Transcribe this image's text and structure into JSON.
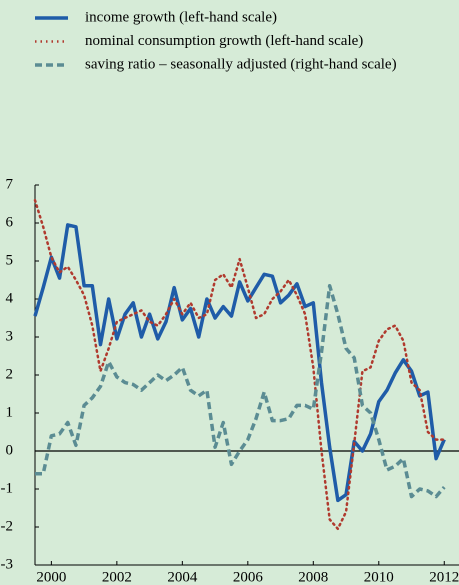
{
  "chart_data": {
    "type": "line",
    "x": [
      1999.5,
      1999.75,
      2000,
      2000.25,
      2000.5,
      2000.75,
      2001,
      2001.25,
      2001.5,
      2001.75,
      2002,
      2002.25,
      2002.5,
      2002.75,
      2003,
      2003.25,
      2003.5,
      2003.75,
      2004,
      2004.25,
      2004.5,
      2004.75,
      2005,
      2005.25,
      2005.5,
      2005.75,
      2006,
      2006.25,
      2006.5,
      2006.75,
      2007,
      2007.25,
      2007.5,
      2007.75,
      2008,
      2008.25,
      2008.5,
      2008.75,
      2009,
      2009.25,
      2009.5,
      2009.75,
      2010,
      2010.25,
      2010.5,
      2010.75,
      2011,
      2011.25,
      2011.5,
      2011.75,
      2012
    ],
    "series": [
      {
        "name": "income growth (left-hand scale)",
        "color": "#1f5ca8",
        "style": "solid",
        "values": [
          3.55,
          4.3,
          5.1,
          4.55,
          5.95,
          5.9,
          4.35,
          4.35,
          2.8,
          4.0,
          2.95,
          3.6,
          3.9,
          3.0,
          3.6,
          2.95,
          3.4,
          4.3,
          3.45,
          3.75,
          3.0,
          4.0,
          3.5,
          3.8,
          3.55,
          4.45,
          3.95,
          4.3,
          4.65,
          4.6,
          3.9,
          4.1,
          4.4,
          3.8,
          3.9,
          1.8,
          0.1,
          -1.3,
          -1.15,
          0.25,
          0.0,
          0.45,
          1.3,
          1.6,
          2.05,
          2.4,
          2.1,
          1.45,
          1.55,
          -0.2,
          0.3
        ]
      },
      {
        "name": "nominal consumption growth (left-hand scale)",
        "color": "#b03a2e",
        "style": "dotted",
        "values": [
          6.6,
          5.9,
          5.1,
          4.7,
          4.85,
          4.5,
          4.1,
          3.3,
          2.1,
          2.7,
          3.4,
          3.5,
          3.6,
          3.7,
          3.4,
          3.3,
          3.6,
          4.0,
          3.6,
          3.9,
          3.5,
          3.6,
          4.5,
          4.65,
          4.3,
          5.05,
          4.3,
          3.5,
          3.6,
          4.0,
          4.2,
          4.5,
          4.1,
          3.6,
          2.2,
          0.0,
          -1.8,
          -2.05,
          -1.6,
          0.2,
          2.1,
          2.2,
          2.9,
          3.2,
          3.3,
          2.9,
          1.8,
          1.6,
          0.5,
          0.3,
          0.3
        ]
      },
      {
        "name": "saving ratio – seasonally adjusted (right-hand scale)",
        "color": "#5b8c93",
        "style": "dashed",
        "values": [
          -0.6,
          -0.6,
          0.4,
          0.45,
          0.75,
          0.15,
          1.2,
          1.4,
          1.7,
          2.35,
          1.95,
          1.8,
          1.75,
          1.6,
          1.8,
          2.0,
          1.85,
          2.0,
          2.2,
          1.6,
          1.45,
          1.6,
          0.1,
          0.75,
          -0.35,
          0.0,
          0.3,
          0.85,
          1.55,
          0.8,
          0.8,
          0.85,
          1.2,
          1.2,
          1.1,
          2.6,
          4.35,
          3.6,
          2.7,
          2.45,
          1.2,
          1.0,
          0.3,
          -0.5,
          -0.4,
          -0.2,
          -1.2,
          -1.0,
          -1.05,
          -1.2,
          -0.95
        ]
      }
    ],
    "xlim": [
      1999.5,
      2012.45
    ],
    "xticks": [
      2000,
      2002,
      2004,
      2006,
      2008,
      2010,
      2012
    ],
    "ylim": [
      -3,
      7
    ],
    "yticks": [
      -3,
      -2,
      -1,
      0,
      1,
      2,
      3,
      4,
      5,
      6,
      7
    ]
  }
}
